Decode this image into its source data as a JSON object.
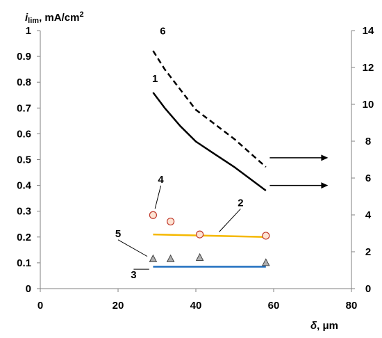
{
  "chart_data": {
    "type": "line",
    "ylabel_symbol": "i",
    "ylabel_sub": "lim",
    "ylabel_unit": ", mA/cm",
    "ylabel_sup": "2",
    "xlabel_symbol": "δ",
    "xlabel_unit": ", μm",
    "x_ticks": [
      "0",
      "20",
      "40",
      "60",
      "80"
    ],
    "y_left_ticks": [
      "0",
      "0.1",
      "0.2",
      "0.3",
      "0.4",
      "0.5",
      "0.6",
      "0.7",
      "0.8",
      "0.9",
      "1"
    ],
    "y_right_ticks": [
      "0",
      "2",
      "4",
      "6",
      "8",
      "10",
      "12",
      "14"
    ],
    "xlim": [
      0,
      80
    ],
    "ylim_left": [
      0,
      1
    ],
    "ylim_right": [
      0,
      14
    ],
    "grid": false,
    "series": [
      {
        "label": "1",
        "style": "solid",
        "color": "#000000",
        "axis": "left",
        "x": [
          29,
          32,
          36,
          40,
          44,
          50,
          58
        ],
        "y": [
          0.76,
          0.7,
          0.63,
          0.57,
          0.53,
          0.47,
          0.38
        ]
      },
      {
        "label": "2",
        "style": "solid",
        "color": "#f5b800",
        "axis": "left",
        "x": [
          29,
          58
        ],
        "y": [
          0.21,
          0.2
        ]
      },
      {
        "label": "3",
        "style": "solid",
        "color": "#1f6fbf",
        "axis": "left",
        "x": [
          29,
          58
        ],
        "y": [
          0.085,
          0.085
        ]
      },
      {
        "label": "4",
        "style": "circle",
        "color": "#c0392b",
        "fill": "#fde3d3",
        "axis": "left",
        "x": [
          29,
          33.5,
          41,
          58
        ],
        "y": [
          0.285,
          0.26,
          0.21,
          0.205
        ]
      },
      {
        "label": "5",
        "style": "triangle",
        "color": "#444444",
        "fill": "#b0b0b0",
        "axis": "left",
        "x": [
          29,
          33.5,
          41,
          58
        ],
        "y": [
          0.115,
          0.115,
          0.12,
          0.1
        ]
      },
      {
        "label": "6",
        "style": "dashed",
        "color": "#000000",
        "axis": "right",
        "x": [
          29,
          32,
          36,
          40,
          45,
          50,
          58
        ],
        "y": [
          12.9,
          11.9,
          10.8,
          9.7,
          8.9,
          8.1,
          6.6
        ]
      }
    ],
    "arrows": [
      {
        "from_x": 59,
        "to_x": 74,
        "y_right": 7.1
      },
      {
        "from_x": 59,
        "to_x": 74,
        "y_right": 5.6
      }
    ],
    "curve_labels": [
      {
        "text": "1",
        "x": 29.5,
        "y": 0.8,
        "leader": false
      },
      {
        "text": "2",
        "x": 51.5,
        "y": 0.32,
        "leader": true,
        "lx": 46,
        "ly": 0.22
      },
      {
        "text": "3",
        "x": 24,
        "y": 0.04,
        "leader": true,
        "lx": 28,
        "ly": 0.075
      },
      {
        "text": "4",
        "x": 31,
        "y": 0.41,
        "leader": true,
        "lx": 29.5,
        "ly": 0.31
      },
      {
        "text": "5",
        "x": 20,
        "y": 0.2,
        "leader": true,
        "lx": 27.5,
        "ly": 0.125
      },
      {
        "text": "6",
        "x": 31.5,
        "y": 13.8,
        "leader": false,
        "axis": "right"
      }
    ]
  }
}
